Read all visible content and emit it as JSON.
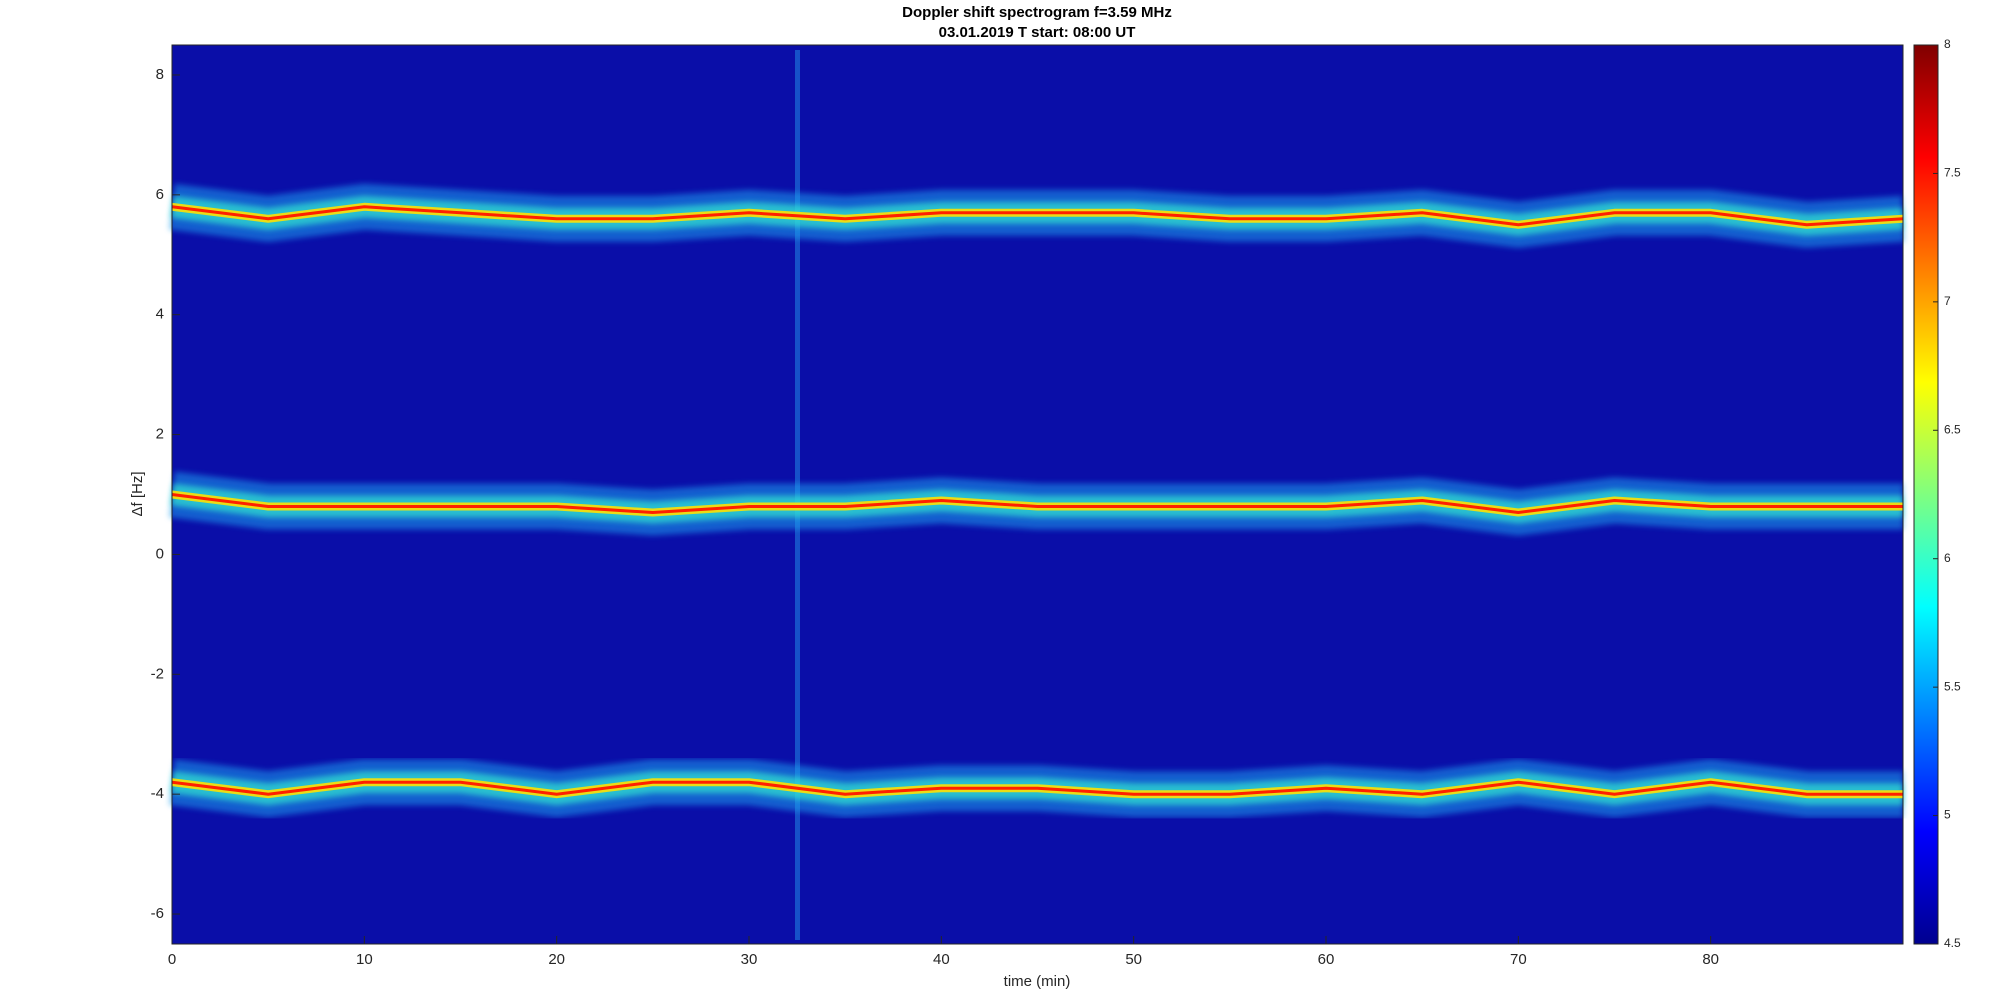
{
  "chart_data": {
    "type": "spectrogram",
    "title": "Doppler shift spectrogram f=3.59 MHz",
    "subtitle": "03.01.2019   T start: 08:00 UT",
    "x_label": "time (min)",
    "y_label": "Δf [Hz]",
    "xlim": [
      0,
      90
    ],
    "xticks": [
      0,
      10,
      20,
      30,
      40,
      50,
      60,
      70,
      80
    ],
    "ylim": [
      -6.5,
      8.5
    ],
    "yticks": [
      -6,
      -4,
      -2,
      0,
      2,
      4,
      6,
      8
    ],
    "clim": [
      4.5,
      8
    ],
    "cticks": [
      4.5,
      5,
      5.5,
      6,
      6.5,
      7,
      7.5,
      8
    ],
    "x": [
      0,
      5,
      10,
      15,
      20,
      25,
      30,
      35,
      40,
      45,
      50,
      55,
      60,
      65,
      70,
      75,
      80,
      85,
      90
    ],
    "series": [
      {
        "color": "#ff2000",
        "values": [
          5.8,
          5.6,
          5.8,
          5.7,
          5.6,
          5.6,
          5.7,
          5.6,
          5.7,
          5.7,
          5.7,
          5.6,
          5.6,
          5.7,
          5.5,
          5.7,
          5.7,
          5.5,
          5.6
        ]
      },
      {
        "color": "#ff2000",
        "values": [
          1.0,
          0.8,
          0.8,
          0.8,
          0.8,
          0.7,
          0.8,
          0.8,
          0.9,
          0.8,
          0.8,
          0.8,
          0.8,
          0.9,
          0.7,
          0.9,
          0.8,
          0.8,
          0.8
        ]
      },
      {
        "color": "#ff2000",
        "values": [
          -3.8,
          -4.0,
          -3.8,
          -3.8,
          -4.0,
          -3.8,
          -3.8,
          -4.0,
          -3.9,
          -3.9,
          -4.0,
          -4.0,
          -3.9,
          -4.0,
          -3.8,
          -4.0,
          -3.8,
          -4.0,
          -4.0
        ]
      }
    ]
  }
}
